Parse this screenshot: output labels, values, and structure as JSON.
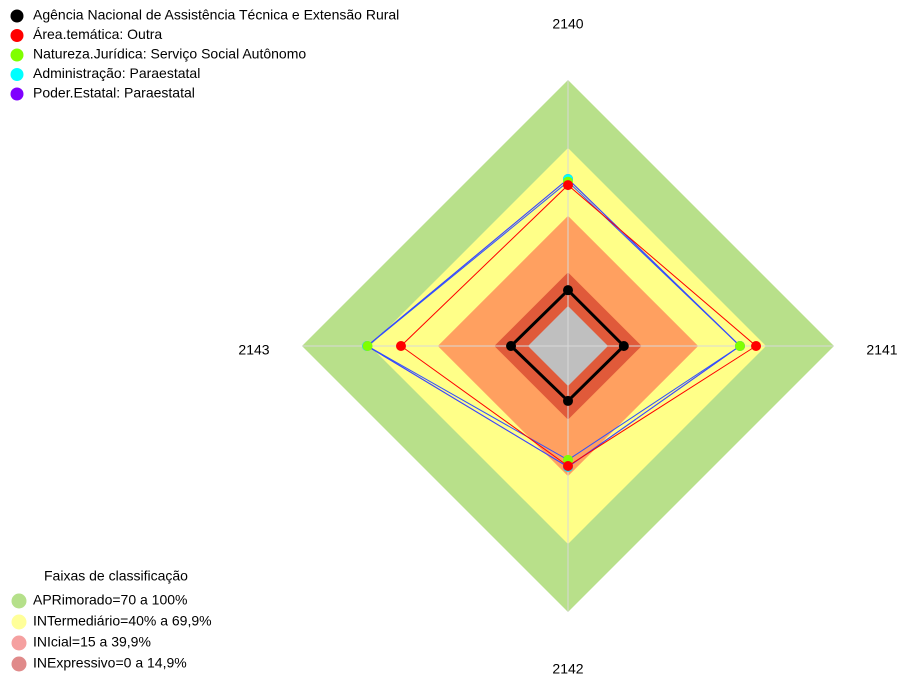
{
  "chart_data": {
    "type": "radar",
    "categories": [
      "2140",
      "2141",
      "2142",
      "2143"
    ],
    "ylim": [
      0,
      100
    ],
    "series": [
      {
        "name": "Agência Nacional de Assistência Técnica e Extensão Rural",
        "color": "#000000",
        "line_color": "#000000",
        "values": [
          7,
          7,
          6.6,
          7.5
        ]
      },
      {
        "name": "Área.temática: Outra",
        "color": "#ff0000",
        "line_color": "#ff0000",
        "values": [
          53.5,
          65.5,
          35.4,
          56.2
        ]
      },
      {
        "name": "Natureza.Jurídica: Serviço Social Autônomo",
        "color": "#80ff00",
        "line_color": "#3050ff",
        "values": [
          55,
          58.4,
          32.7,
          71
        ]
      },
      {
        "name": "Administração: Paraestatal",
        "color": "#00ffff",
        "line_color": "#3050ff",
        "values": [
          56.2,
          58.4,
          35.8,
          71.2
        ]
      },
      {
        "name": "Poder.Estatal: Paraestatal",
        "color": "#8000ff",
        "line_color": "#8000ff",
        "values": [
          56.2,
          58.4,
          35.8,
          71.2
        ]
      }
    ],
    "bands_title": "Faixas de classificação",
    "bands": [
      {
        "label": "APRimorado=70 a 100%",
        "from": 70,
        "to": 100,
        "color": "#b8e08a",
        "legend_color": "#b5e08a"
      },
      {
        "label": "INTermediário=40% a 69,9%",
        "from": 40,
        "to": 69.9,
        "color": "#ffff88",
        "legend_color": "#ffff99"
      },
      {
        "label": "INIcial=15 a 39,9%",
        "from": 15,
        "to": 39.9,
        "color": "#ffa060",
        "legend_color": "#f5a0a0"
      },
      {
        "label": "INExpressivo=0 a 14,9%",
        "from": 0,
        "to": 14.9,
        "color": "#e05a3a",
        "legend_color": "#e08a8a"
      }
    ]
  }
}
